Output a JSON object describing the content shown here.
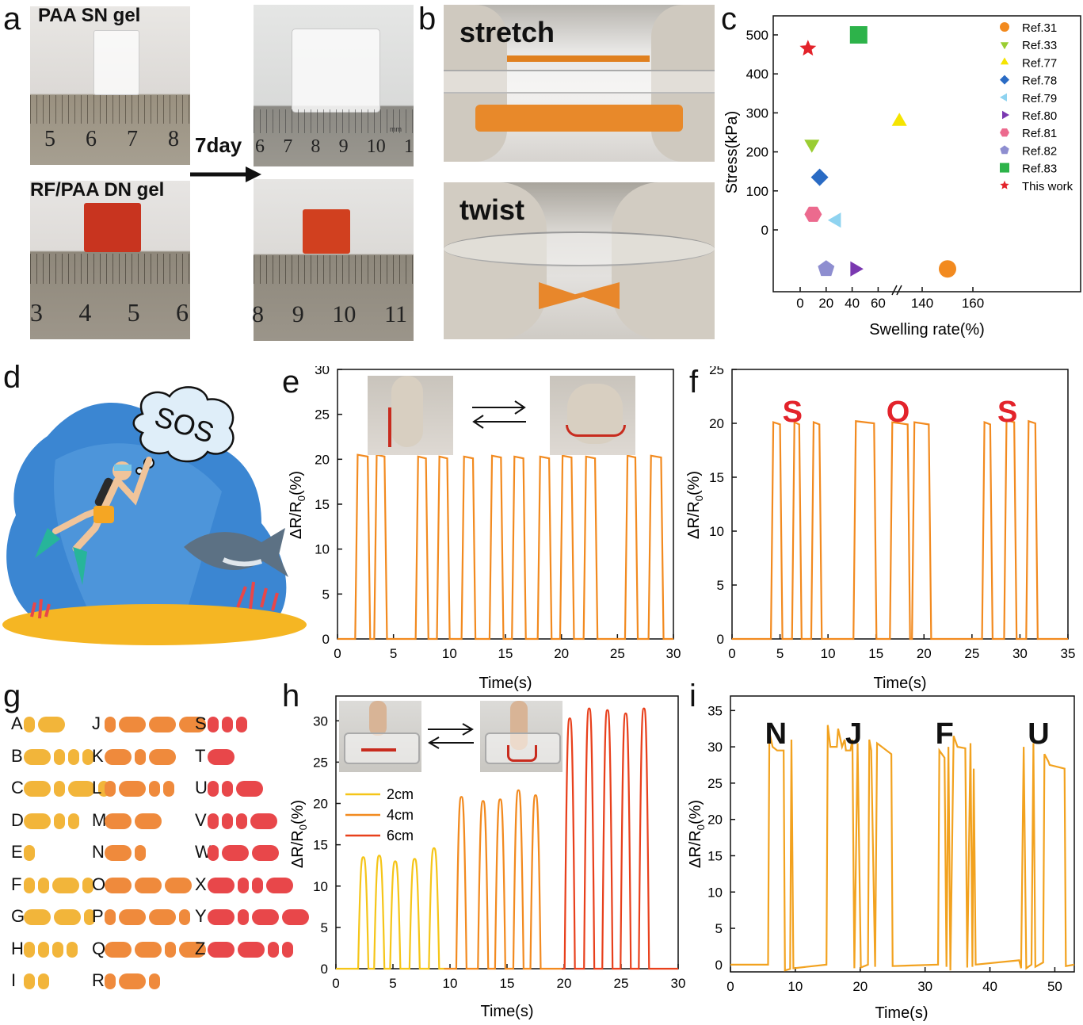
{
  "figure": {
    "panel_labels": [
      "a",
      "b",
      "c",
      "d",
      "e",
      "f",
      "g",
      "h",
      "i"
    ]
  },
  "panel_a": {
    "top_label": "PAA SN gel",
    "bottom_label": "RF/PAA DN gel",
    "arrow_label": "7day",
    "ruler_top_left": [
      "5",
      "6",
      "7",
      "8"
    ],
    "ruler_top_right": [
      "6",
      "7",
      "8",
      "9",
      "10",
      "1"
    ],
    "ruler_bottom_left": [
      "3",
      "4",
      "5",
      "6"
    ],
    "ruler_bottom_right": [
      "8",
      "9",
      "10",
      "11"
    ],
    "ruler_unit": "mm"
  },
  "panel_b": {
    "top_label": "stretch",
    "bottom_label": "twist"
  },
  "panel_d": {
    "bubble_text": "SOS"
  },
  "panel_g": {
    "colors": {
      "yellow": "#f2b53a",
      "orange": "#ef8a3c",
      "red": "#e8474a"
    },
    "columns": [
      [
        {
          "letter": "A",
          "code": ".-",
          "color": "yellow"
        },
        {
          "letter": "B",
          "code": "-...",
          "color": "yellow"
        },
        {
          "letter": "C",
          "code": "-.-.",
          "color": "yellow"
        },
        {
          "letter": "D",
          "code": "-..",
          "color": "yellow"
        },
        {
          "letter": "E",
          "code": ".",
          "color": "yellow"
        },
        {
          "letter": "F",
          "code": "..-.",
          "color": "yellow"
        },
        {
          "letter": "G",
          "code": "--.",
          "color": "yellow"
        },
        {
          "letter": "H",
          "code": "....",
          "color": "yellow"
        },
        {
          "letter": "I",
          "code": "..",
          "color": "yellow"
        }
      ],
      [
        {
          "letter": "J",
          "code": ".---",
          "color": "orange"
        },
        {
          "letter": "K",
          "code": "-.-",
          "color": "orange"
        },
        {
          "letter": "L",
          "code": ".-..",
          "color": "orange"
        },
        {
          "letter": "M",
          "code": "--",
          "color": "orange"
        },
        {
          "letter": "N",
          "code": "-.",
          "color": "orange"
        },
        {
          "letter": "O",
          "code": "---",
          "color": "orange"
        },
        {
          "letter": "P",
          "code": ".--.",
          "color": "orange"
        },
        {
          "letter": "Q",
          "code": "--.-",
          "color": "orange"
        },
        {
          "letter": "R",
          "code": ".-.",
          "color": "orange"
        }
      ],
      [
        {
          "letter": "S",
          "code": "...",
          "color": "red"
        },
        {
          "letter": "T",
          "code": "-",
          "color": "red"
        },
        {
          "letter": "U",
          "code": "..-",
          "color": "red"
        },
        {
          "letter": "V",
          "code": "...-",
          "color": "red"
        },
        {
          "letter": "W",
          "code": ".--",
          "color": "red"
        },
        {
          "letter": "X",
          "code": "-..-",
          "color": "red"
        },
        {
          "letter": "Y",
          "code": "-.--",
          "color": "red"
        },
        {
          "letter": "Z",
          "code": "--..",
          "color": "red"
        }
      ]
    ]
  },
  "chart_data": [
    {
      "id": "c",
      "type": "scatter",
      "ylabel": "Stress(kPa)",
      "xlabel": "Swelling rate(%)",
      "x_ticks_left": [
        "0",
        "20",
        "40",
        "60"
      ],
      "x_ticks_right": [
        "140",
        "160"
      ],
      "y_ticks": [
        "0",
        "100",
        "200",
        "300",
        "400",
        "500"
      ],
      "legend_position": "top-right",
      "series": [
        {
          "name": "Ref.31",
          "marker": "circle",
          "color": "#f28a1f",
          "x": 150,
          "y": -100
        },
        {
          "name": "Ref.33",
          "marker": "triangle-down",
          "color": "#9acd32",
          "x": 9,
          "y": 220
        },
        {
          "name": "Ref.77",
          "marker": "triangle-up",
          "color": "#f5e400",
          "x": 131,
          "y": 278
        },
        {
          "name": "Ref.78",
          "marker": "diamond",
          "color": "#2a6bc4",
          "x": 15,
          "y": 135
        },
        {
          "name": "Ref.79",
          "marker": "triangle-left",
          "color": "#8fd3f0",
          "x": 28,
          "y": 25
        },
        {
          "name": "Ref.80",
          "marker": "triangle-right",
          "color": "#7a38b0",
          "x": 42,
          "y": -100
        },
        {
          "name": "Ref.81",
          "marker": "hexagon",
          "color": "#ec6a8e",
          "x": 10,
          "y": 40
        },
        {
          "name": "Ref.82",
          "marker": "pentagon",
          "color": "#8e8ed0",
          "x": 20,
          "y": -100
        },
        {
          "name": "Ref.83",
          "marker": "square",
          "color": "#2db34a",
          "x": 45,
          "y": 500
        },
        {
          "name": "This work",
          "marker": "star",
          "color": "#e3232b",
          "x": 6,
          "y": 465
        }
      ]
    },
    {
      "id": "e",
      "type": "line",
      "xlabel": "Time(s)",
      "ylabel": "ΔR/R0(%)",
      "xlim": [
        0,
        30
      ],
      "ylim": [
        0,
        30
      ],
      "x_ticks": [
        "0",
        "5",
        "10",
        "15",
        "20",
        "25",
        "30"
      ],
      "y_ticks": [
        "0",
        "5",
        "10",
        "15",
        "20",
        "25",
        "30"
      ],
      "color": "#f28a1f",
      "baseline": 0,
      "pulses": [
        {
          "start": 1.8,
          "end": 2.7,
          "level": 20.5
        },
        {
          "start": 3.5,
          "end": 4.2,
          "level": 20.5
        },
        {
          "start": 7.2,
          "end": 7.9,
          "level": 20.3
        },
        {
          "start": 9.1,
          "end": 9.8,
          "level": 20.3
        },
        {
          "start": 11.3,
          "end": 12.1,
          "level": 20.3
        },
        {
          "start": 13.8,
          "end": 14.6,
          "level": 20.4
        },
        {
          "start": 15.8,
          "end": 16.6,
          "level": 20.3
        },
        {
          "start": 18.1,
          "end": 18.9,
          "level": 20.3
        },
        {
          "start": 20.1,
          "end": 20.9,
          "level": 20.4
        },
        {
          "start": 22.2,
          "end": 23.0,
          "level": 20.3
        },
        {
          "start": 25.9,
          "end": 26.6,
          "level": 20.4
        },
        {
          "start": 28.0,
          "end": 28.9,
          "level": 20.4
        }
      ]
    },
    {
      "id": "f",
      "type": "line",
      "xlabel": "Time(s)",
      "ylabel": "ΔR/R0(%)",
      "xlim": [
        0,
        35
      ],
      "ylim": [
        0,
        25
      ],
      "x_ticks": [
        "0",
        "5",
        "10",
        "15",
        "20",
        "25",
        "30",
        "35"
      ],
      "y_ticks": [
        "0",
        "5",
        "10",
        "15",
        "20",
        "25"
      ],
      "color": "#f28a1f",
      "annotations": [
        {
          "text": "S",
          "x": 6.3
        },
        {
          "text": "O",
          "x": 17.3
        },
        {
          "text": "S",
          "x": 28.7
        }
      ],
      "baseline": 0,
      "pulses": [
        {
          "start": 4.3,
          "end": 5.0,
          "level": 20.1
        },
        {
          "start": 6.5,
          "end": 7.0,
          "level": 20.1
        },
        {
          "start": 8.5,
          "end": 9.1,
          "level": 20.1
        },
        {
          "start": 12.9,
          "end": 14.8,
          "level": 20.2
        },
        {
          "start": 16.7,
          "end": 18.3,
          "level": 20.1
        },
        {
          "start": 19.0,
          "end": 20.5,
          "level": 20.1
        },
        {
          "start": 26.3,
          "end": 26.9,
          "level": 20.1
        },
        {
          "start": 28.6,
          "end": 29.4,
          "level": 20.3
        },
        {
          "start": 30.9,
          "end": 31.6,
          "level": 20.2
        }
      ]
    },
    {
      "id": "h",
      "type": "line",
      "xlabel": "Time(s)",
      "ylabel": "ΔR/R0(%)",
      "xlim": [
        0,
        30
      ],
      "ylim": [
        0,
        33
      ],
      "x_ticks": [
        "0",
        "5",
        "10",
        "15",
        "20",
        "25",
        "30"
      ],
      "y_ticks": [
        "0",
        "5",
        "10",
        "15",
        "20",
        "25",
        "30"
      ],
      "legend_position": "middle-left",
      "series": [
        {
          "name": "2cm",
          "color": "#f5c518",
          "x_range": [
            0,
            9.5
          ],
          "peaks": [
            2.4,
            3.8,
            5.2,
            6.9,
            8.6
          ],
          "levels": [
            13.5,
            13.7,
            13.0,
            13.3,
            14.6
          ]
        },
        {
          "name": "4cm",
          "color": "#f28a1f",
          "x_range": [
            9.5,
            19.8
          ],
          "peaks": [
            11.0,
            12.9,
            14.4,
            16.0,
            17.5
          ],
          "levels": [
            20.8,
            20.3,
            20.5,
            21.6,
            21.0
          ]
        },
        {
          "name": "6cm",
          "color": "#e8401c",
          "x_range": [
            19.8,
            30
          ],
          "peaks": [
            20.5,
            22.2,
            23.8,
            25.4,
            27.0
          ],
          "levels": [
            30.3,
            31.5,
            31.3,
            30.9,
            31.5
          ]
        }
      ]
    },
    {
      "id": "i",
      "type": "line",
      "xlabel": "Time(s)",
      "ylabel": "ΔR/R0(%)",
      "xlim": [
        0,
        53
      ],
      "ylim": [
        -1,
        37
      ],
      "x_ticks": [
        "0",
        "10",
        "20",
        "30",
        "40",
        "50"
      ],
      "y_ticks": [
        "0",
        "5",
        "10",
        "15",
        "20",
        "25",
        "30",
        "35"
      ],
      "color": "#f2a21f",
      "annotations": [
        {
          "text": "N",
          "x": 7.0
        },
        {
          "text": "J",
          "x": 19.0
        },
        {
          "text": "F",
          "x": 33.0
        },
        {
          "text": "U",
          "x": 47.5
        }
      ],
      "baseline": 0
    }
  ]
}
